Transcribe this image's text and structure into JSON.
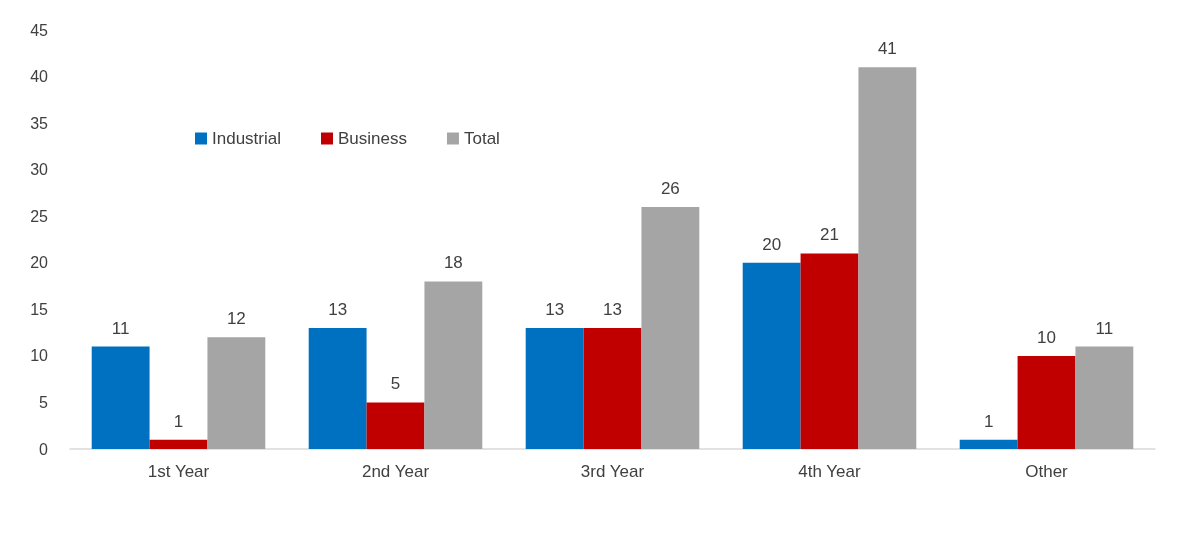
{
  "chart_data": {
    "type": "bar",
    "categories": [
      "1st Year",
      "2nd Year",
      "3rd Year",
      "4th Year",
      "Other"
    ],
    "series": [
      {
        "name": "Industrial",
        "color": "#0070c0",
        "values": [
          11,
          13,
          13,
          20,
          1
        ]
      },
      {
        "name": "Business",
        "color": "#c00000",
        "values": [
          1,
          5,
          13,
          21,
          10
        ]
      },
      {
        "name": "Total",
        "color": "#a5a5a5",
        "values": [
          12,
          18,
          26,
          41,
          11
        ]
      }
    ],
    "ylim": [
      0,
      45
    ],
    "yticks": [
      0,
      5,
      10,
      15,
      20,
      25,
      30,
      35,
      40,
      45
    ],
    "grid": false,
    "legend": "top left",
    "data_labels": true
  }
}
